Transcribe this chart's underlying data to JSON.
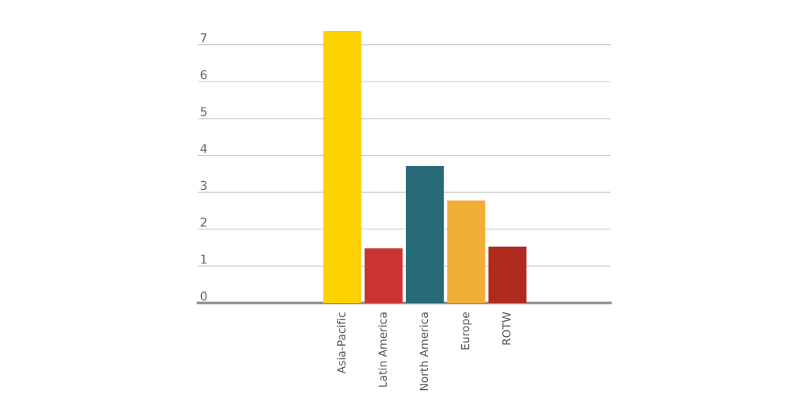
{
  "chart_data": {
    "type": "bar",
    "categories": [
      null,
      null,
      null,
      "Asia-Pacific",
      "Latin America",
      "North America",
      "Europe",
      "ROTW",
      null,
      null
    ],
    "values": [
      null,
      null,
      null,
      7.38,
      1.48,
      3.71,
      2.78,
      1.53,
      null,
      null
    ],
    "colors": [
      "#fdd000",
      "#fdd000",
      "#fdd000",
      "#fdd000",
      "#cc3333",
      "#266a78",
      "#f0ae38",
      "#b02a20",
      "#b02a20",
      "#b02a20"
    ],
    "ylim": [
      0,
      7.4
    ],
    "yticks": [
      0,
      1,
      2,
      3,
      4,
      5,
      6,
      7
    ],
    "grid": "y"
  }
}
